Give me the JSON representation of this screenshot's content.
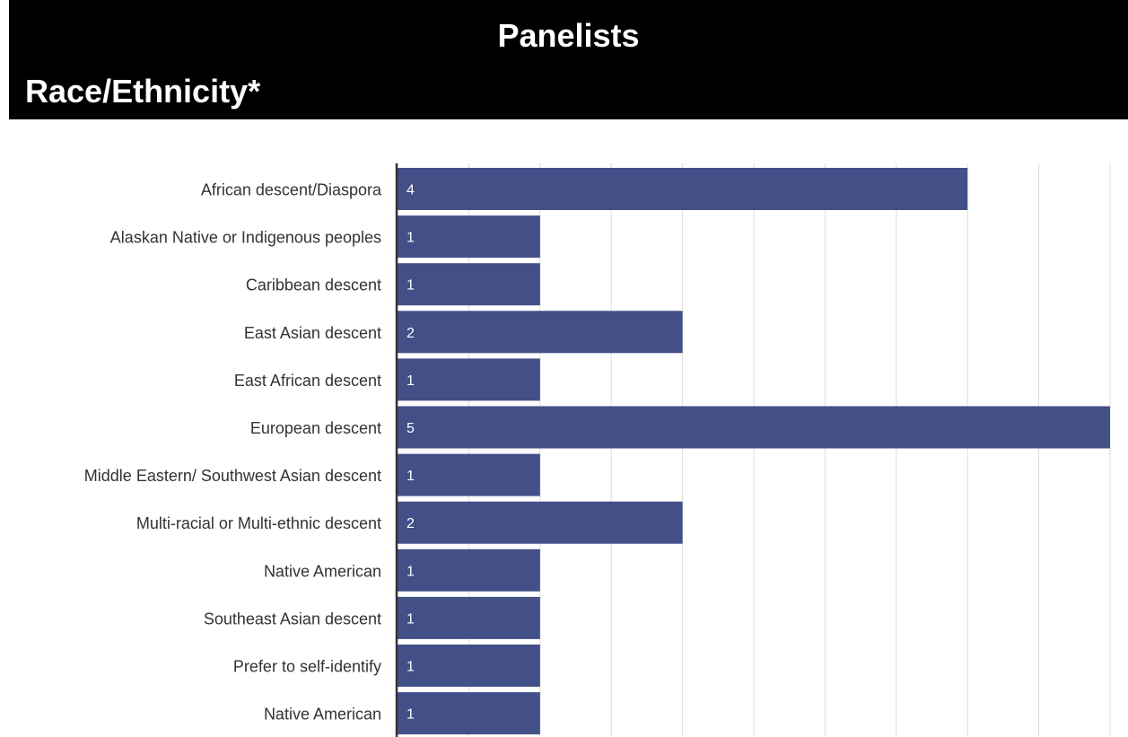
{
  "header": {
    "title": "Panelists",
    "subtitle": "Race/Ethnicity*"
  },
  "colors": {
    "bar": "#434f87",
    "grid": "#dddddd",
    "axis": "#333333",
    "header_bg": "#000000"
  },
  "chart_data": {
    "type": "bar",
    "orientation": "horizontal",
    "categories": [
      "African descent/Diaspora",
      "Alaskan Native or Indigenous peoples",
      "Caribbean descent",
      "East Asian descent",
      "East African descent",
      "European descent",
      "Middle Eastern/ Southwest Asian descent",
      "Multi-racial or Multi-ethnic descent",
      "Native American",
      "Southeast Asian descent",
      "Prefer to self-identify",
      "Native American"
    ],
    "values": [
      4,
      1,
      1,
      2,
      1,
      5,
      1,
      2,
      1,
      1,
      1,
      1
    ],
    "xlim": [
      0,
      5
    ],
    "grid": true,
    "data_labels": true,
    "legend": "none"
  }
}
